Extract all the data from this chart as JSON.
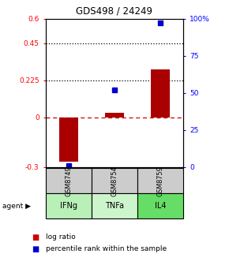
{
  "title": "GDS498 / 24249",
  "samples": [
    "GSM8749",
    "GSM8754",
    "GSM8759"
  ],
  "agents": [
    "IFNg",
    "TNFa",
    "IL4"
  ],
  "log_ratios": [
    -0.27,
    0.03,
    0.29
  ],
  "percentile_ranks": [
    1.0,
    52.0,
    97.0
  ],
  "ylim_left": [
    -0.3,
    0.6
  ],
  "ylim_right": [
    0,
    100
  ],
  "yticks_left": [
    -0.3,
    0.0,
    0.225,
    0.45,
    0.6
  ],
  "ytick_labels_left": [
    "-0.3",
    "0",
    "0.225",
    "0.45",
    "0.6"
  ],
  "yticks_right": [
    0,
    25,
    50,
    75,
    100
  ],
  "ytick_labels_right": [
    "0",
    "25",
    "50",
    "75",
    "100%"
  ],
  "hlines": [
    0.225,
    0.45
  ],
  "bar_color": "#aa0000",
  "dot_color": "#0000cc",
  "agent_colors": {
    "IFNg": "#b8f0b8",
    "TNFa": "#ccf5cc",
    "IL4": "#66dd66"
  },
  "sample_bg": "#cccccc",
  "legend_bar_color": "#cc0000",
  "legend_dot_color": "#0000cc"
}
